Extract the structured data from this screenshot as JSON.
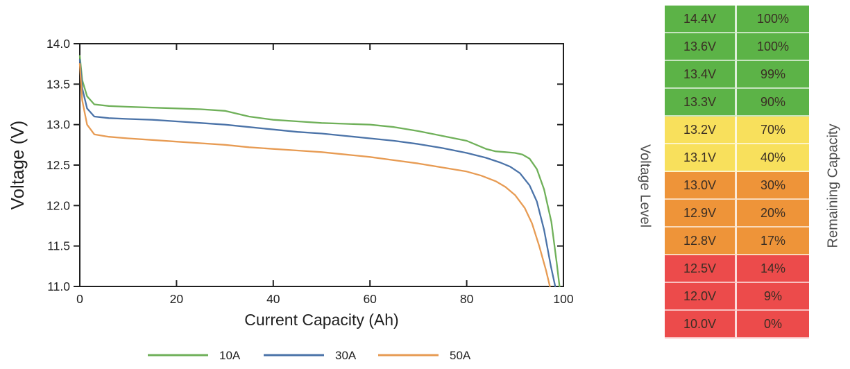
{
  "chart_data": {
    "type": "line",
    "title": "",
    "xlabel": "Current Capacity (Ah)",
    "ylabel": "Voltage (V)",
    "xlim": [
      0,
      100
    ],
    "ylim": [
      11.0,
      14.0
    ],
    "xticks": [
      0,
      20,
      40,
      60,
      80,
      100
    ],
    "yticks": [
      11.0,
      11.5,
      12.0,
      12.5,
      13.0,
      13.5,
      14.0
    ],
    "grid": false,
    "legend_position": "bottom",
    "axis_color": "#1f1f1f",
    "series": [
      {
        "name": "10A",
        "color": "#6fb059",
        "x": [
          0,
          0.5,
          1.5,
          3,
          6,
          10,
          15,
          20,
          25,
          30,
          35,
          40,
          45,
          50,
          55,
          60,
          65,
          70,
          75,
          80,
          84,
          86,
          88,
          90,
          91.5,
          93,
          94.5,
          96,
          97.5,
          98.6,
          99.2
        ],
        "y": [
          13.85,
          13.55,
          13.35,
          13.25,
          13.23,
          13.22,
          13.21,
          13.2,
          13.19,
          13.17,
          13.1,
          13.06,
          13.04,
          13.02,
          13.01,
          13.0,
          12.97,
          12.92,
          12.86,
          12.8,
          12.7,
          12.67,
          12.66,
          12.65,
          12.63,
          12.58,
          12.45,
          12.2,
          11.8,
          11.3,
          11.0
        ]
      },
      {
        "name": "30A",
        "color": "#4b73a8",
        "x": [
          0,
          0.5,
          1.5,
          3,
          6,
          10,
          15,
          20,
          25,
          30,
          35,
          40,
          45,
          50,
          55,
          60,
          65,
          70,
          75,
          80,
          84,
          87,
          89,
          91,
          93,
          94.5,
          96,
          97.4,
          98.3
        ],
        "y": [
          13.8,
          13.45,
          13.2,
          13.1,
          13.08,
          13.07,
          13.06,
          13.04,
          13.02,
          13.0,
          12.97,
          12.94,
          12.91,
          12.89,
          12.86,
          12.83,
          12.8,
          12.76,
          12.71,
          12.65,
          12.59,
          12.53,
          12.48,
          12.4,
          12.25,
          12.05,
          11.7,
          11.25,
          11.0
        ]
      },
      {
        "name": "50A",
        "color": "#e79b53",
        "x": [
          0,
          0.5,
          1.5,
          3,
          6,
          10,
          15,
          20,
          25,
          30,
          35,
          40,
          45,
          50,
          55,
          60,
          65,
          70,
          75,
          80,
          83,
          86,
          88,
          90,
          92,
          93.5,
          95,
          96.4,
          97.2
        ],
        "y": [
          13.75,
          13.3,
          13.0,
          12.88,
          12.85,
          12.83,
          12.81,
          12.79,
          12.77,
          12.75,
          12.72,
          12.7,
          12.68,
          12.66,
          12.63,
          12.6,
          12.56,
          12.52,
          12.47,
          12.42,
          12.37,
          12.3,
          12.23,
          12.13,
          11.97,
          11.78,
          11.5,
          11.2,
          11.0
        ]
      }
    ]
  },
  "table": {
    "left_label": "Voltage Level",
    "right_label": "Remaining Capacity",
    "colors": {
      "green": "#5cb347",
      "yellow": "#f8e05c",
      "orange": "#ee9439",
      "red": "#ec4b4b"
    },
    "rows": [
      {
        "voltage": "14.4V",
        "capacity": "100%",
        "level": "green"
      },
      {
        "voltage": "13.6V",
        "capacity": "100%",
        "level": "green"
      },
      {
        "voltage": "13.4V",
        "capacity": "99%",
        "level": "green"
      },
      {
        "voltage": "13.3V",
        "capacity": "90%",
        "level": "green"
      },
      {
        "voltage": "13.2V",
        "capacity": "70%",
        "level": "yellow"
      },
      {
        "voltage": "13.1V",
        "capacity": "40%",
        "level": "yellow"
      },
      {
        "voltage": "13.0V",
        "capacity": "30%",
        "level": "orange"
      },
      {
        "voltage": "12.9V",
        "capacity": "20%",
        "level": "orange"
      },
      {
        "voltage": "12.8V",
        "capacity": "17%",
        "level": "orange"
      },
      {
        "voltage": "12.5V",
        "capacity": "14%",
        "level": "red"
      },
      {
        "voltage": "12.0V",
        "capacity": "9%",
        "level": "red"
      },
      {
        "voltage": "10.0V",
        "capacity": "0%",
        "level": "red"
      }
    ]
  }
}
